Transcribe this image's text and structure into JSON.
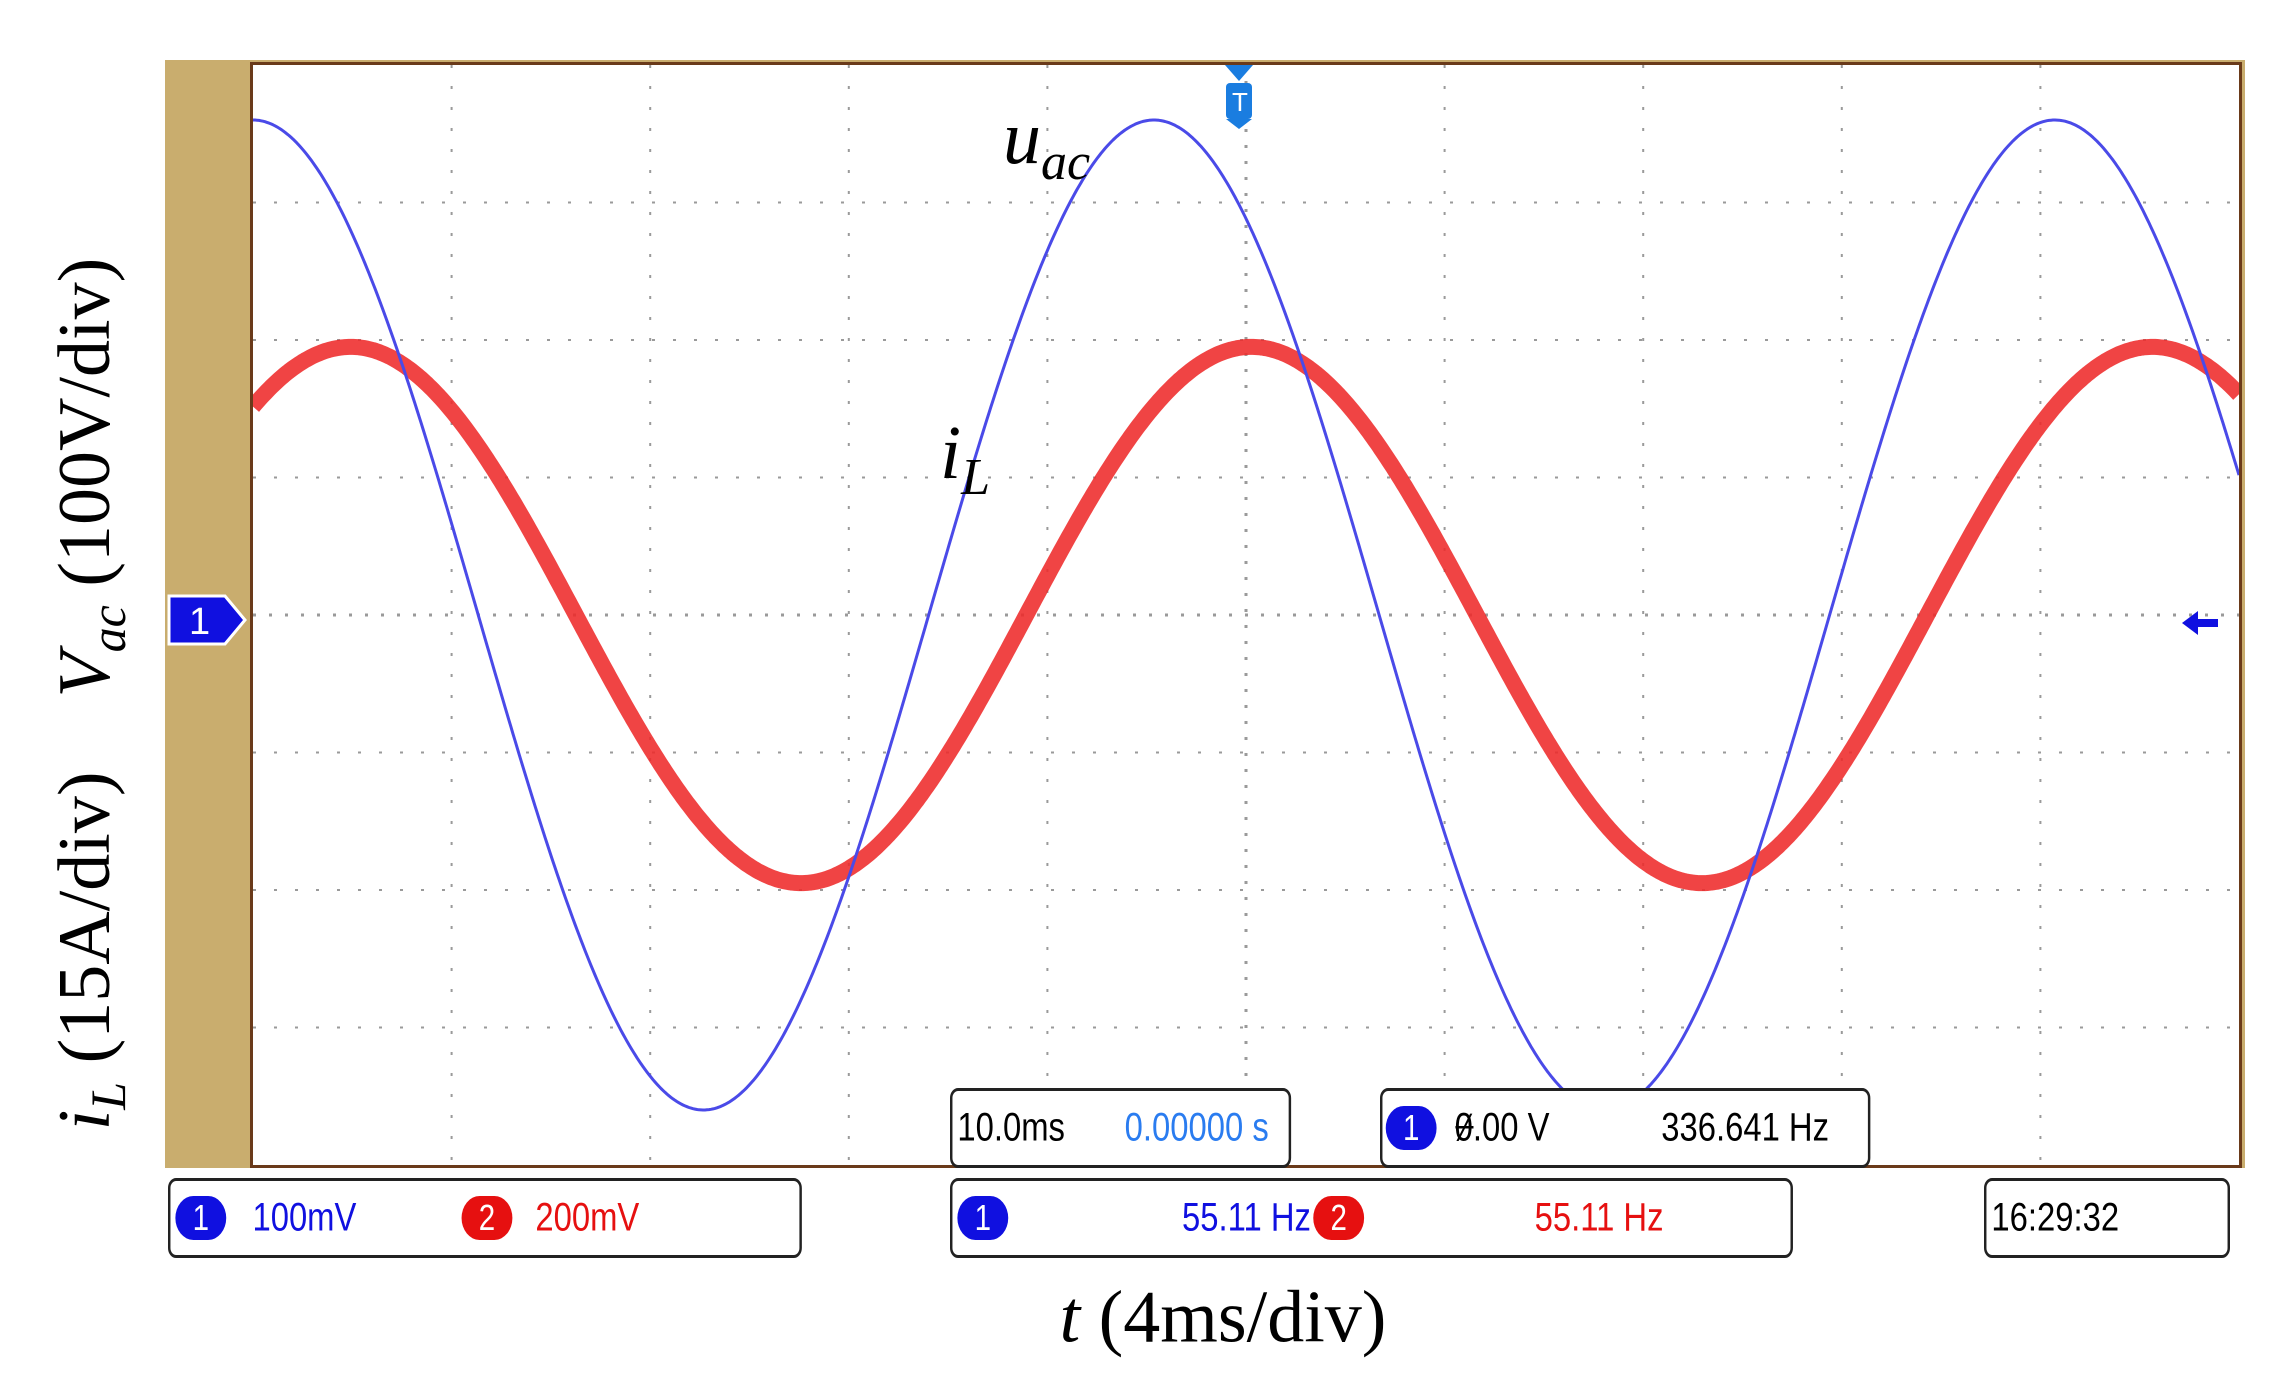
{
  "axis_titles": {
    "y_voltage": "V",
    "y_voltage_sub": "ac",
    "y_voltage_scale": "(100V/div)",
    "y_current": "i",
    "y_current_sub": "L",
    "y_current_scale": "(15A/div)",
    "x_var": "t",
    "x_scale": "(4ms/div)"
  },
  "trace_labels": {
    "voltage": "u",
    "voltage_sub": "ac",
    "current": "i",
    "current_sub": "L"
  },
  "scope_readouts": {
    "timebase": "10.0ms",
    "trigger_delay": "0.00000 s",
    "trigger_channel": "1",
    "trigger_level": "0.00 V",
    "trigger_freq": "336.641 Hz",
    "ch1_number": "1",
    "ch1_scale": "100mV",
    "ch2_number": "2",
    "ch2_scale": "200mV",
    "meas1_channel": "1",
    "meas1_value": "55.11 Hz",
    "meas2_channel": "2",
    "meas2_value": "55.11 Hz",
    "clock": "16:29:32",
    "ch1_ground_marker": "1"
  },
  "colors": {
    "voltage_trace": "#4a4ae8",
    "current_trace": "#ee2a2a",
    "grid": "#9a9a9a",
    "frame": "#c9ad6e",
    "blue_text": "#1010e0",
    "red_text": "#e61010",
    "delay_text": "#2a7cf0"
  },
  "chart_data": {
    "type": "line",
    "title": "",
    "xlabel": "t (4ms/div)",
    "ylabel": "Vac (100V/div)  iL (15A/div)",
    "x_unit": "ms",
    "xlim": [
      0,
      40
    ],
    "grid_divisions": {
      "x": 10,
      "y": 8
    },
    "ylim_divisions": [
      -4,
      4
    ],
    "series": [
      {
        "name": "u_ac",
        "unit_per_div": "100V/div",
        "shape": "sine",
        "frequency_hz": 55.11,
        "amplitude_div": 3.6,
        "amplitude_volts": 360,
        "phase_deg": 90
      },
      {
        "name": "i_L",
        "unit_per_div": "15A/div",
        "shape": "sine",
        "frequency_hz": 55.11,
        "amplitude_div": 1.95,
        "amplitude_amps": 29.25,
        "phase_deg": 51
      }
    ]
  }
}
